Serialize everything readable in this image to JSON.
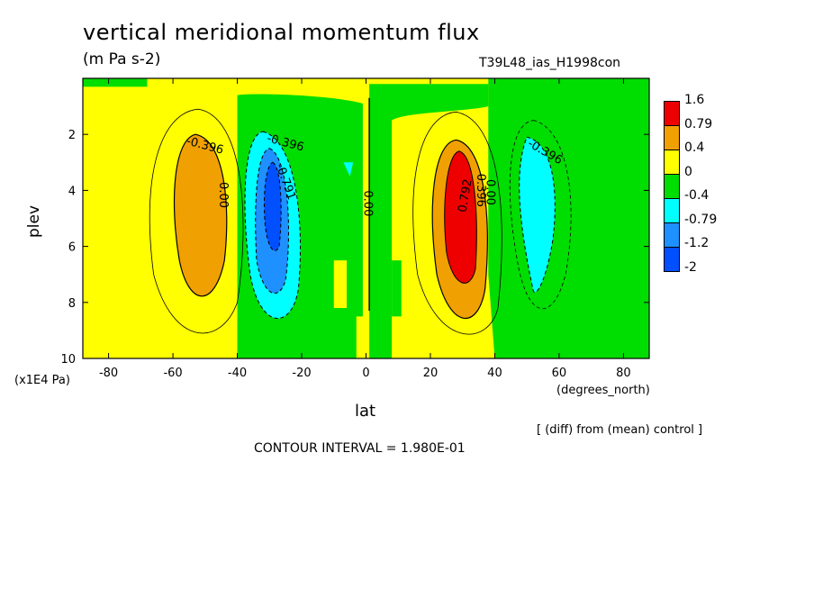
{
  "chart_data": {
    "type": "heatmap",
    "title": "vertical meridional momentum flux",
    "subtitle": "(m Pa s-2)",
    "run_label": "T39L48_ias_H1998con",
    "xlabel": "lat",
    "xunit": "(degrees_north)",
    "ylabel": "plev",
    "yunit": "(x1E4 Pa)",
    "xlim": [
      -88,
      88
    ],
    "ylim": [
      10,
      0
    ],
    "x_ticks": [
      "-80",
      "-60",
      "-40",
      "-20",
      "0",
      "20",
      "40",
      "60",
      "80"
    ],
    "y_ticks": [
      "2",
      "4",
      "6",
      "8",
      "10"
    ],
    "note": "[ (diff) from (mean) control ]",
    "contour_interval": "CONTOUR INTERVAL = 1.980E-01",
    "contour_labels": [
      "-0.396",
      "-0.396",
      "-0.791",
      "0.00",
      "0.00",
      "0.792",
      "0.396",
      "0.00",
      "-0.396",
      "-0.396"
    ],
    "legend_levels": [
      "1.6",
      "0.79",
      "0.4",
      "0",
      "-0.4",
      "-0.79",
      "-1.2",
      "-2"
    ],
    "legend_colors": [
      "#ee0000",
      "#f0a000",
      "#ffff00",
      "#00dd00",
      "#00ffff",
      "#1e90ff",
      "#0050ff"
    ]
  }
}
